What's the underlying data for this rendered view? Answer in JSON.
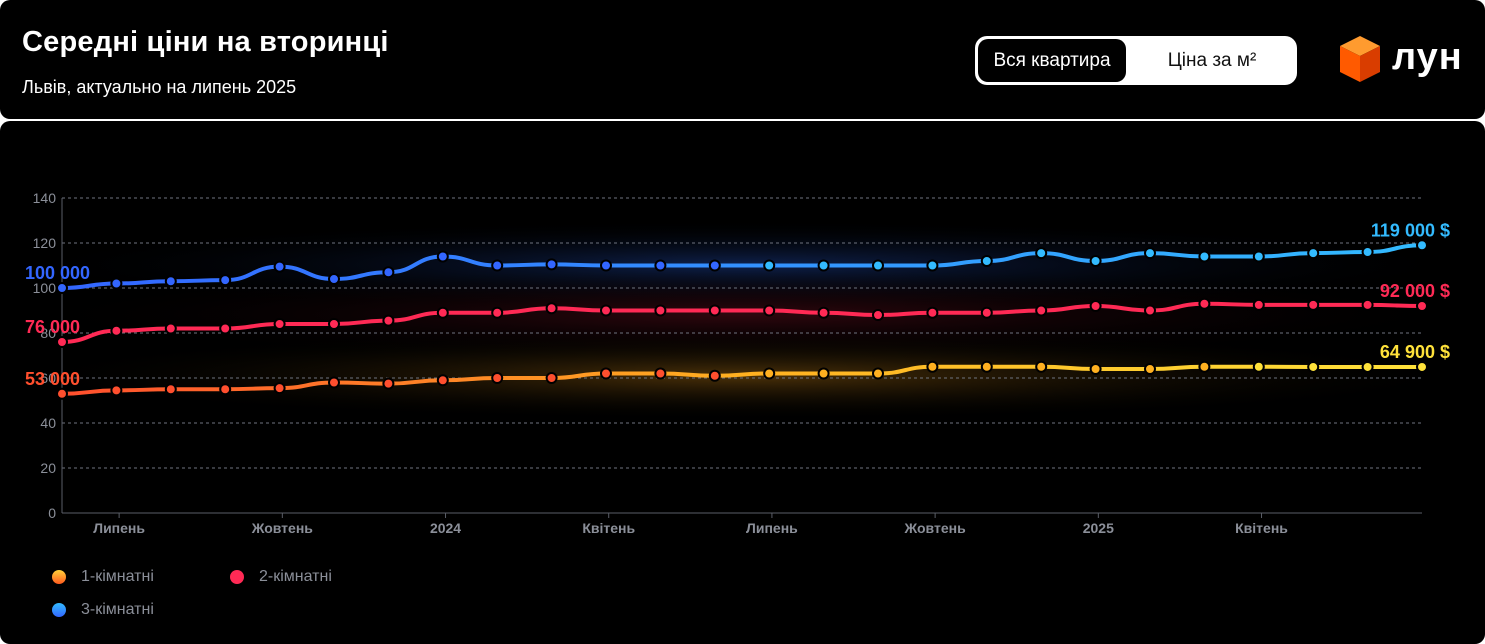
{
  "header": {
    "title": "Середні ціни на вторинці",
    "subtitle": "Львів, актуально на липень 2025"
  },
  "toggle": {
    "active_label": "Вся квартира",
    "inactive_label": "Ціна за м²"
  },
  "brand": {
    "logo_text": "лун",
    "logo_icon": "orange-cube-icon",
    "accent": "#ff5a00"
  },
  "chart_data": {
    "type": "line",
    "ylim": [
      0,
      140
    ],
    "yticks": [
      0,
      20,
      40,
      60,
      80,
      100,
      120,
      140
    ],
    "x_tick_labels": [
      {
        "index": 2,
        "label": "Липень"
      },
      {
        "index": 5,
        "label": "Жовтень"
      },
      {
        "index": 8,
        "label": "2024"
      },
      {
        "index": 11,
        "label": "Квітень"
      },
      {
        "index": 14,
        "label": "Липень"
      },
      {
        "index": 17,
        "label": "Жовтень"
      },
      {
        "index": 20,
        "label": "2025"
      },
      {
        "index": 23,
        "label": "Квітень"
      }
    ],
    "grid": true,
    "legend_position": "bottom-left",
    "series": [
      {
        "name": "1-кімнатні",
        "colors": [
          "#ff4f2e",
          "#ffb020",
          "#ffe23a"
        ],
        "values": [
          53,
          54.5,
          55,
          55,
          55.5,
          58,
          57.5,
          59,
          60,
          60,
          62,
          62,
          61,
          62,
          62,
          62,
          65,
          65,
          65,
          64,
          64,
          65,
          65,
          64.9,
          64.9,
          64.9
        ],
        "start_label": "53 000",
        "end_label": "64 900 $"
      },
      {
        "name": "2-кімнатні",
        "colors": [
          "#ff2a55",
          "#ff2a55"
        ],
        "values": [
          76,
          81,
          82,
          82,
          84,
          84,
          85.5,
          89,
          89,
          91,
          90,
          90,
          90,
          90,
          89,
          88,
          89,
          89,
          90,
          92,
          90,
          93,
          92.5,
          92.5,
          92.5,
          92
        ],
        "start_label": "76 000",
        "end_label": "92 000 $"
      },
      {
        "name": "3-кімнатні",
        "colors": [
          "#3366ff",
          "#33bbff"
        ],
        "values": [
          100,
          102,
          103,
          103.5,
          109.5,
          104,
          107,
          114,
          110,
          110.5,
          110,
          110,
          110,
          110,
          110,
          110,
          110,
          112,
          115.5,
          112,
          115.5,
          114,
          114,
          115.5,
          116,
          119
        ],
        "start_label": "100 000",
        "end_label": "119 000 $"
      }
    ]
  }
}
